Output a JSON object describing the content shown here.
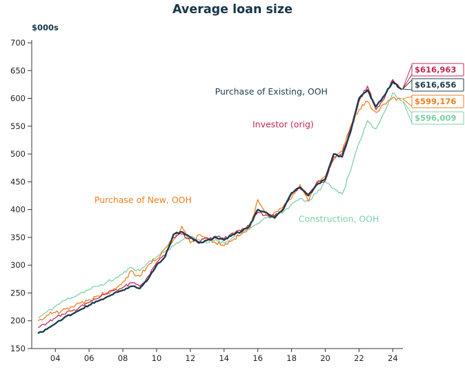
{
  "chart_data": {
    "type": "line",
    "title": "Average loan size",
    "xlabel": "",
    "ylabel": "$000s",
    "ylim": [
      150,
      700
    ],
    "ytick_step": 50,
    "grid": false,
    "legend_position": "inline",
    "x_start": 2003,
    "x_step": 0.5,
    "x_range_draw": [
      2002.6,
      2024.6
    ],
    "xticks": {
      "values": [
        2004,
        2006,
        2008,
        2010,
        2012,
        2014,
        2016,
        2018,
        2020,
        2022,
        2024
      ],
      "labels": [
        "04",
        "06",
        "08",
        "10",
        "12",
        "14",
        "16",
        "18",
        "20",
        "22",
        "24"
      ]
    },
    "series": [
      {
        "name": "Construction, OOH",
        "color": "#7ed0a5",
        "width": 1.3,
        "end_label": "$596,009",
        "callout_slot": 3,
        "values": [
          205,
          216,
          226,
          236,
          242,
          250,
          256,
          262,
          268,
          275,
          285,
          296,
          290,
          305,
          315,
          325,
          335,
          345,
          352,
          346,
          340,
          346,
          340,
          350,
          355,
          365,
          375,
          385,
          390,
          395,
          410,
          420,
          415,
          430,
          450,
          438,
          428,
          470,
          520,
          560,
          545,
          575,
          610,
          596.009
        ]
      },
      {
        "name": "Purchase of New, OOH",
        "color": "#f07d1e",
        "width": 1.3,
        "end_label": "$599,176",
        "callout_slot": 2,
        "values": [
          200,
          210,
          215,
          222,
          225,
          232,
          238,
          245,
          250,
          258,
          270,
          290,
          280,
          300,
          310,
          330,
          345,
          370,
          340,
          355,
          350,
          340,
          335,
          345,
          355,
          365,
          418,
          390,
          395,
          405,
          420,
          445,
          415,
          450,
          460,
          490,
          505,
          550,
          580,
          595,
          575,
          590,
          602,
          599.176
        ]
      },
      {
        "name": "Investor (orig)",
        "color": "#c02a4f",
        "width": 1.3,
        "end_label": "$616,963",
        "callout_slot": 0,
        "values": [
          188,
          196,
          205,
          212,
          218,
          226,
          233,
          240,
          248,
          255,
          260,
          268,
          262,
          280,
          305,
          318,
          350,
          356,
          348,
          342,
          348,
          352,
          348,
          358,
          362,
          372,
          395,
          390,
          388,
          402,
          428,
          438,
          428,
          448,
          452,
          495,
          500,
          545,
          595,
          622,
          580,
          600,
          634,
          616.963
        ]
      },
      {
        "name": "Purchase of Existing, OOH",
        "color": "#1d3c50",
        "width": 2.4,
        "end_label": "$616,656",
        "callout_slot": 1,
        "values": [
          178,
          185,
          195,
          205,
          212,
          220,
          228,
          235,
          242,
          250,
          255,
          262,
          258,
          275,
          300,
          315,
          355,
          360,
          350,
          340,
          345,
          350,
          345,
          355,
          360,
          370,
          400,
          395,
          385,
          400,
          430,
          440,
          425,
          445,
          455,
          500,
          495,
          540,
          600,
          615,
          585,
          605,
          630,
          616.656
        ]
      }
    ],
    "annotations": [
      {
        "text": "Purchase of Existing, OOH",
        "color": "#1d3c50",
        "x": 2016.8,
        "y": 607
      },
      {
        "text": "Investor (orig)",
        "color": "#c02a4f",
        "x": 2017.5,
        "y": 548
      },
      {
        "text": "Purchase of New, OOH",
        "color": "#f07d1e",
        "x": 2009.2,
        "y": 412
      },
      {
        "text": "Construction, OOH",
        "color": "#7ed0a5",
        "x": 2020.8,
        "y": 378
      }
    ]
  }
}
